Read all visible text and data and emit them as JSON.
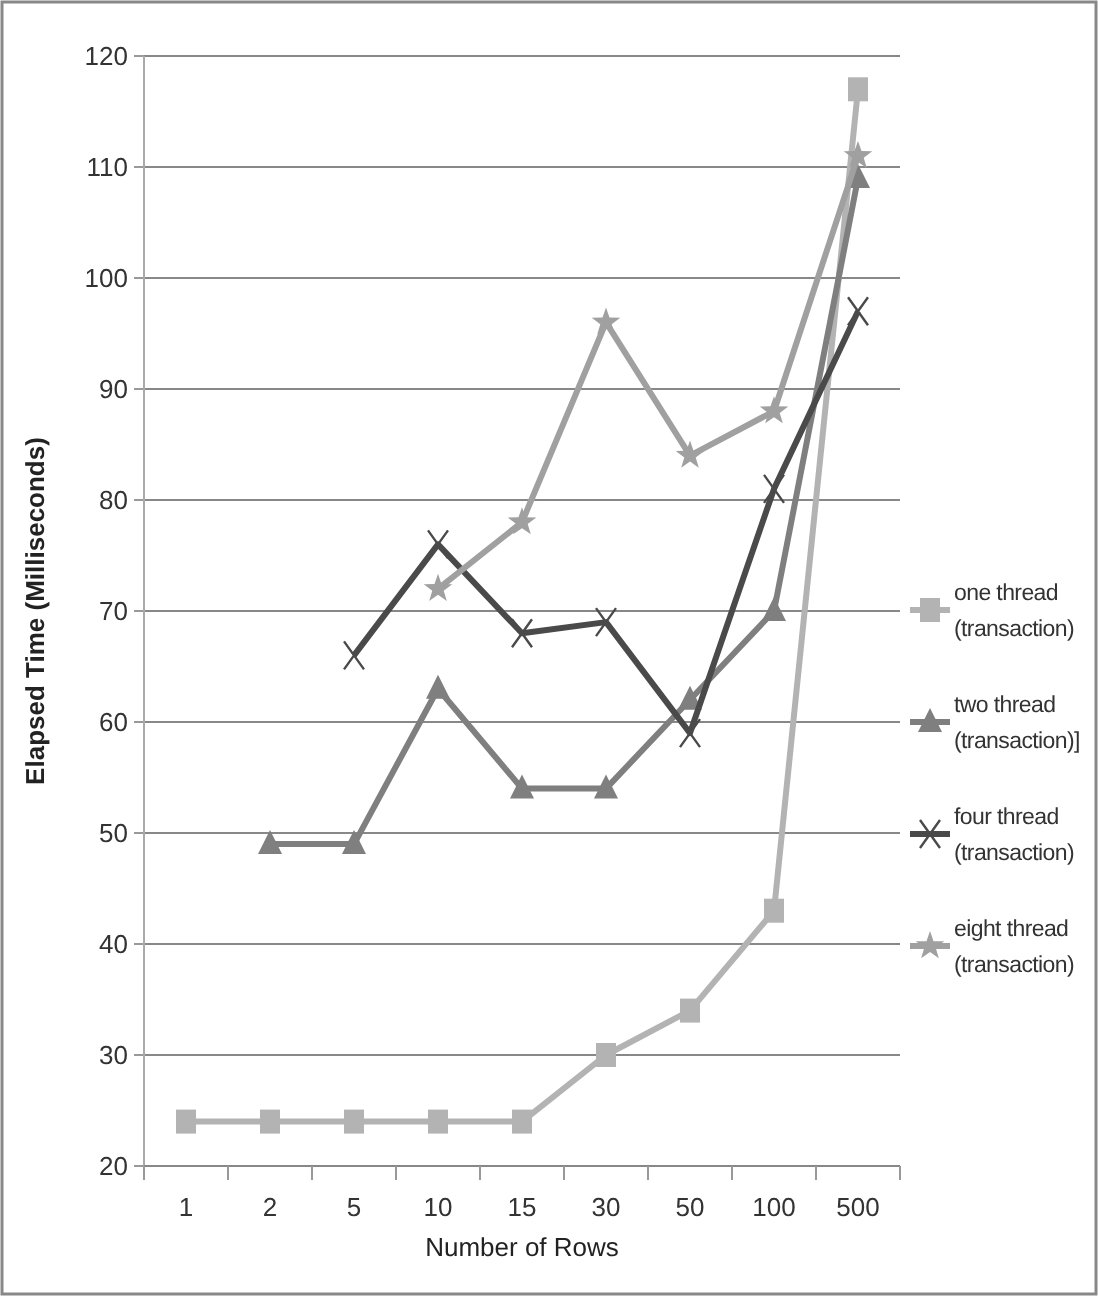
{
  "chart_data": {
    "type": "line",
    "xlabel": "Number of Rows",
    "ylabel": "Elapsed Time (Milliseconds)",
    "categories": [
      "1",
      "2",
      "5",
      "10",
      "15",
      "30",
      "50",
      "100",
      "500"
    ],
    "ylim": [
      20,
      120
    ],
    "yticks": [
      20,
      30,
      40,
      50,
      60,
      70,
      80,
      90,
      100,
      110,
      120
    ],
    "grid": "y",
    "legend": "right",
    "series": [
      {
        "name": "one thread (transaction)",
        "color": "#b3b3b3",
        "marker": "square",
        "values": [
          24,
          24,
          24,
          24,
          24,
          30,
          34,
          43,
          117
        ]
      },
      {
        "name": "two thread (transaction)]",
        "color": "#7f7f7f",
        "marker": "triangle",
        "values": [
          null,
          49,
          49,
          63,
          54,
          54,
          62,
          70,
          109
        ]
      },
      {
        "name": "four thread (transaction)",
        "color": "#4a4a4a",
        "marker": "cross",
        "values": [
          null,
          null,
          66,
          76,
          68,
          69,
          59,
          81,
          97
        ]
      },
      {
        "name": "eight thread (transaction)",
        "color": "#a0a0a0",
        "marker": "star",
        "values": [
          null,
          null,
          null,
          72,
          78,
          96,
          84,
          88,
          111
        ]
      }
    ]
  }
}
